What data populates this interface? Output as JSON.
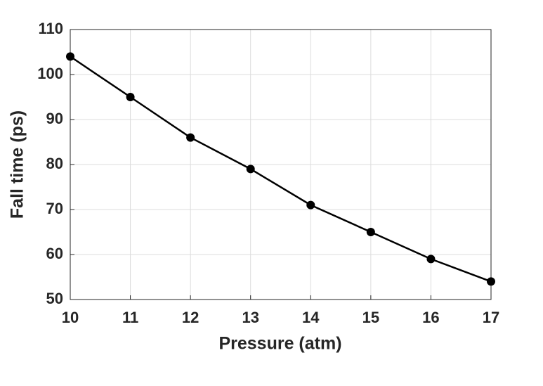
{
  "chart_data": {
    "type": "line",
    "x_label": "Pressure (atm)",
    "y_label": "Fall time (ps)",
    "x": [
      10,
      11,
      12,
      13,
      14,
      15,
      16,
      17
    ],
    "series": [
      {
        "color": "#000000",
        "values": [
          104,
          95,
          86,
          79,
          71,
          65,
          59,
          54
        ]
      }
    ],
    "xlim": [
      10,
      17
    ],
    "xticks": [
      10,
      11,
      12,
      13,
      14,
      15,
      16,
      17
    ],
    "ylim": [
      50,
      110
    ],
    "yticks": [
      50,
      60,
      70,
      80,
      90,
      100,
      110
    ],
    "grid": true,
    "markers": true
  }
}
